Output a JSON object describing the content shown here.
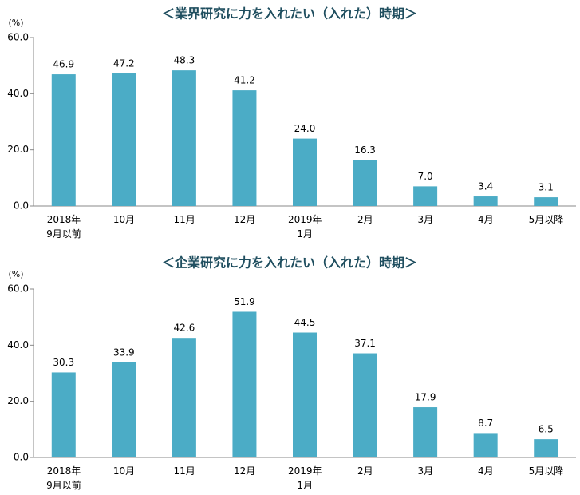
{
  "chart_data": [
    {
      "type": "bar",
      "title": "＜業界研究に力を入れたい（入れた）時期＞",
      "y_label": "(%)",
      "categories": [
        "2018年\n9月以前",
        "10月",
        "11月",
        "12月",
        "2019年\n1月",
        "2月",
        "3月",
        "4月",
        "5月以降"
      ],
      "values": [
        46.9,
        47.2,
        48.3,
        41.2,
        24.0,
        16.3,
        7.0,
        3.4,
        3.1
      ],
      "value_labels": [
        "46.9",
        "47.2",
        "48.3",
        "41.2",
        "24.0",
        "16.3",
        "7.0",
        "3.4",
        "3.1"
      ],
      "color": "#4bacc6",
      "ylim": [
        0,
        60
      ],
      "yticks": [
        {
          "value": 0,
          "label": "0.0"
        },
        {
          "value": 20,
          "label": "20.0"
        },
        {
          "value": 40,
          "label": "40.0"
        },
        {
          "value": 60,
          "label": "60.0"
        }
      ],
      "grid": false
    },
    {
      "type": "bar",
      "title": "＜企業研究に力を入れたい（入れた）時期＞",
      "y_label": "(%)",
      "categories": [
        "2018年\n9月以前",
        "10月",
        "11月",
        "12月",
        "2019年\n1月",
        "2月",
        "3月",
        "4月",
        "5月以降"
      ],
      "values": [
        30.3,
        33.9,
        42.6,
        51.9,
        44.5,
        37.1,
        17.9,
        8.7,
        6.5
      ],
      "value_labels": [
        "30.3",
        "33.9",
        "42.6",
        "51.9",
        "44.5",
        "37.1",
        "17.9",
        "8.7",
        "6.5"
      ],
      "color": "#4bacc6",
      "ylim": [
        0,
        60
      ],
      "yticks": [
        {
          "value": 0,
          "label": "0.0"
        },
        {
          "value": 20,
          "label": "20.0"
        },
        {
          "value": 40,
          "label": "40.0"
        },
        {
          "value": 60,
          "label": "60.0"
        }
      ],
      "grid": false
    }
  ]
}
